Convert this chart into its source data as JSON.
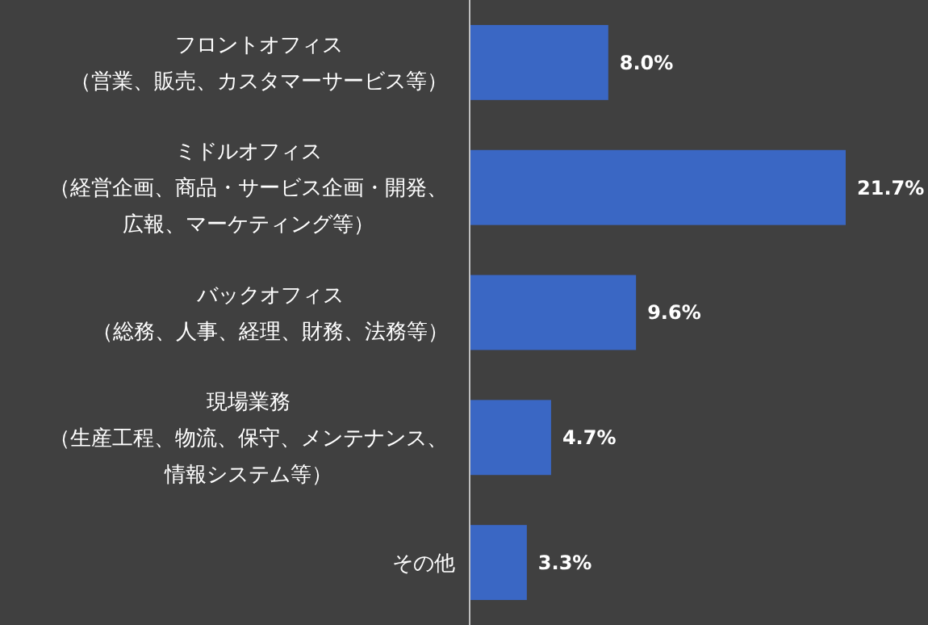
{
  "chart_data": {
    "type": "bar",
    "orientation": "horizontal",
    "categories": [
      "フロントオフィス（営業、販売、カスタマーサービス等）",
      "ミドルオフィス（経営企画、商品・サービス企画・開発、広報、マーケティング等）",
      "バックオフィス（総務、人事、経理、財務、法務等）",
      "現場業務（生産工程、物流、保守、メンテナンス、情報システム等）",
      "その他"
    ],
    "values": [
      8.0,
      21.7,
      9.6,
      4.7,
      3.3
    ],
    "value_labels": [
      "8.0%",
      "21.7%",
      "9.6%",
      "4.7%",
      "3.3%"
    ],
    "color": "#3a67c4"
  }
}
